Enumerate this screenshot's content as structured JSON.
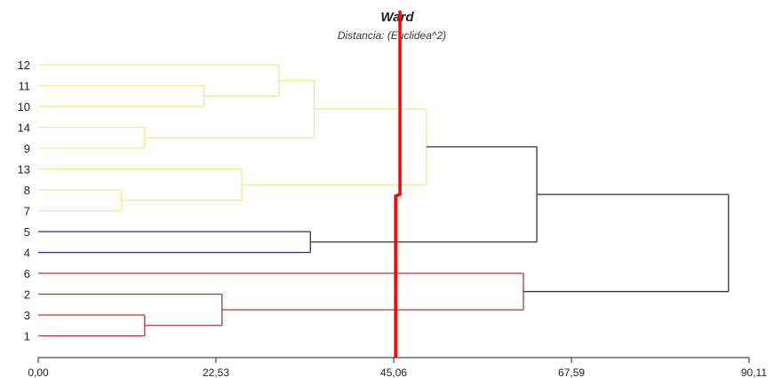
{
  "chart_data": {
    "type": "dendrogram",
    "title": "Ward",
    "subtitle": "Distancia: (Euclidea^2)",
    "xlim": [
      0,
      90.11
    ],
    "x_ticks": [
      {
        "value": 0,
        "label": "0,00"
      },
      {
        "value": 22.53,
        "label": "22,53"
      },
      {
        "value": 45.06,
        "label": "45,06"
      },
      {
        "value": 67.59,
        "label": "67,59"
      },
      {
        "value": 90.11,
        "label": "90,11"
      }
    ],
    "leaves": [
      "12",
      "11",
      "10",
      "14",
      "9",
      "13",
      "8",
      "7",
      "5",
      "4",
      "6",
      "2",
      "3",
      "1"
    ],
    "merges": [
      {
        "id": "a",
        "children": [
          "11",
          "10"
        ],
        "height": 21.0,
        "color": "#f0ea8c"
      },
      {
        "id": "b",
        "children": [
          "12",
          "a"
        ],
        "height": 30.5,
        "color": "#f0ea8c"
      },
      {
        "id": "c",
        "children": [
          "14",
          "9"
        ],
        "height": 13.5,
        "color": "#f0ea8c"
      },
      {
        "id": "d",
        "children": [
          "b",
          "c"
        ],
        "height": 35.0,
        "color": "#f0ea8c"
      },
      {
        "id": "e",
        "children": [
          "8",
          "7"
        ],
        "height": 10.5,
        "color": "#f0ea8c"
      },
      {
        "id": "f",
        "children": [
          "13",
          "e"
        ],
        "height": 25.8,
        "color": "#f0ea8c"
      },
      {
        "id": "g",
        "children": [
          "d",
          "f"
        ],
        "height": 49.2,
        "color": "#f0ea8c"
      },
      {
        "id": "h",
        "children": [
          "5",
          "4"
        ],
        "height": 34.5,
        "color": "#2b2f7a"
      },
      {
        "id": "i",
        "children": [
          "g",
          "h"
        ],
        "height": 63.2,
        "color": "#333333"
      },
      {
        "id": "j",
        "children": [
          "3",
          "1"
        ],
        "height": 13.5,
        "color": "#a83a3a"
      },
      {
        "id": "k",
        "children": [
          "2",
          "j"
        ],
        "height": 23.3,
        "color": "#a83a3a"
      },
      {
        "id": "l",
        "children": [
          "6",
          "k"
        ],
        "height": 61.5,
        "color": "#a83a3a"
      },
      {
        "id": "m",
        "children": [
          "i",
          "l"
        ],
        "height": 87.5,
        "color": "#333333"
      }
    ],
    "cut_line": {
      "color": "#ff0000",
      "x_top": 45.85,
      "x_bottom": 45.3
    },
    "grid": false
  }
}
